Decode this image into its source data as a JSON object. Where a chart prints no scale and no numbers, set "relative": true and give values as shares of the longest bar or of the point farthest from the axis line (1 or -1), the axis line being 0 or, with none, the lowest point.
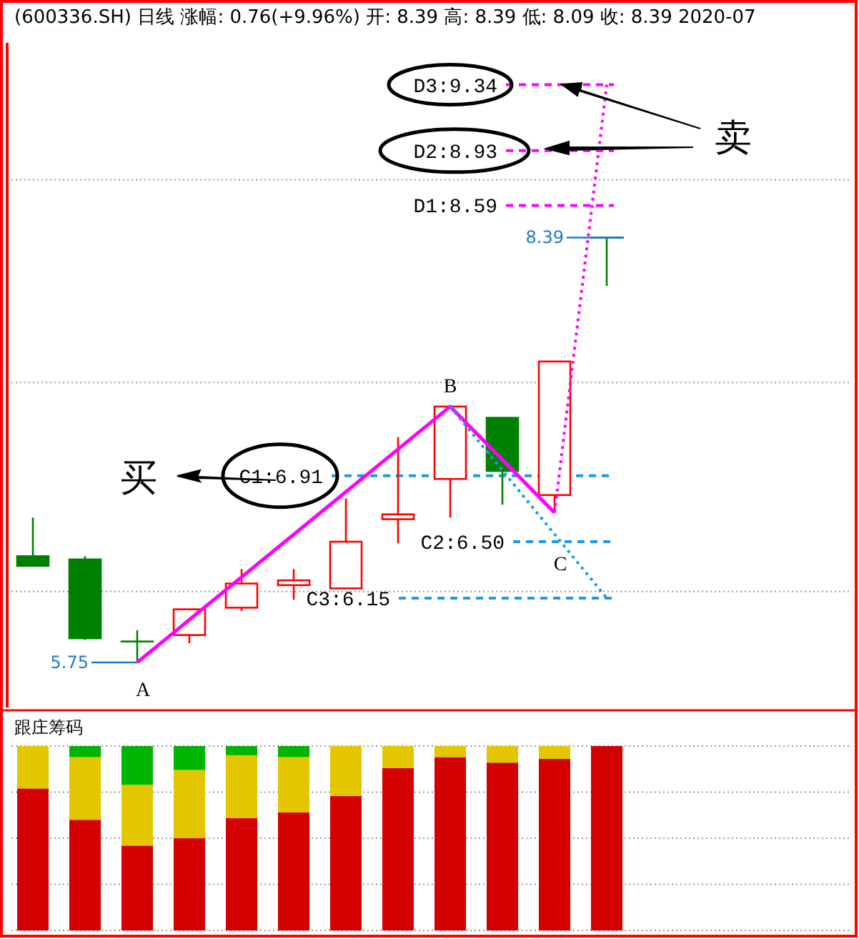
{
  "chart_data": [
    {
      "type": "candlestick",
      "title": "(600336.SH) 日线 涨幅: 0.76(+9.96%) 开: 8.39 高: 8.39 低: 8.09 收: 8.39 2020-07",
      "categories": [
        null,
        null,
        null,
        null,
        null,
        null,
        null,
        null,
        null,
        null,
        null,
        null
      ],
      "ohlc": [
        [
          6.41,
          6.65,
          6.35,
          6.35
        ],
        [
          6.39,
          6.41,
          5.89,
          5.9
        ],
        [
          5.88,
          5.95,
          5.75,
          5.88
        ],
        [
          5.92,
          6.08,
          5.87,
          6.08
        ],
        [
          6.09,
          6.33,
          6.07,
          6.24
        ],
        [
          6.23,
          6.33,
          6.14,
          6.26
        ],
        [
          6.21,
          6.77,
          6.21,
          6.5
        ],
        [
          6.64,
          7.15,
          6.49,
          6.67
        ],
        [
          6.89,
          7.34,
          6.65,
          7.34
        ],
        [
          7.27,
          7.27,
          6.73,
          6.94
        ],
        [
          6.79,
          7.62,
          6.68,
          7.62
        ],
        [
          8.39,
          8.39,
          8.09,
          8.39
        ]
      ],
      "colors": [
        "#008000",
        "#008000",
        "#008000",
        "#ff0000",
        "#ff0000",
        "#ff0000",
        "#ff0000",
        "#ff0000",
        "#ff0000",
        "#008000",
        "#ff0000",
        "#008000"
      ],
      "series": [
        {
          "type": "line",
          "color": "#ff00ff",
          "line_style": "solid",
          "values": [
            null,
            null,
            5.75,
            null,
            null,
            null,
            null,
            null,
            7.34,
            null,
            6.68,
            null
          ],
          "value_labels": [
            null,
            null,
            "A",
            null,
            null,
            null,
            null,
            null,
            "B",
            null,
            "C",
            null
          ]
        },
        {
          "type": "line",
          "color": "#ff00ff",
          "line_style": "dotted",
          "values": [
            null,
            null,
            null,
            null,
            null,
            null,
            null,
            null,
            null,
            null,
            6.68,
            9.34
          ]
        },
        {
          "type": "line",
          "color": "#1e9be0",
          "line_style": "dotted",
          "values": [
            null,
            null,
            null,
            null,
            null,
            null,
            null,
            null,
            7.34,
            null,
            null,
            6.15
          ]
        }
      ],
      "ref_lines": [
        {
          "axis": "y",
          "value": 6.91,
          "label": "C1:6.91",
          "color": "#1e9be0",
          "line_style": "dashed"
        },
        {
          "axis": "y",
          "value": 6.5,
          "label": "C2:6.50",
          "color": "#1e9be0",
          "line_style": "dashed"
        },
        {
          "axis": "y",
          "value": 6.15,
          "label": "C3:6.15",
          "color": "#1e9be0",
          "line_style": "dashed"
        },
        {
          "axis": "y",
          "value": 8.59,
          "label": "D1:8.59",
          "color": "#ff00ff",
          "line_style": "dashed"
        },
        {
          "axis": "y",
          "value": 8.93,
          "label": "D2:8.93",
          "color": "#ff00ff",
          "line_style": "dashed"
        },
        {
          "axis": "y",
          "value": 9.34,
          "label": "D3:9.34",
          "color": "#ff00ff",
          "line_style": "dashed"
        }
      ],
      "annotations": [
        "5.75",
        "8.39",
        "买",
        "卖"
      ],
      "ylim": [
        5.47,
        9.6
      ],
      "yticks": [
        {
          "value": 6.19,
          "label": null
        },
        {
          "value": 7.49,
          "label": null
        },
        {
          "value": 8.75,
          "label": null
        }
      ],
      "grid": "y"
    },
    {
      "type": "bar",
      "title": "跟庄筹码",
      "relative": true,
      "stacked": true,
      "grid": true,
      "categories": [
        null,
        null,
        null,
        null,
        null,
        null,
        null,
        null,
        null,
        null,
        null,
        null
      ],
      "series": [
        {
          "color": "#d40000",
          "values": [
            0.77,
            0.6,
            0.46,
            0.5,
            0.61,
            0.64,
            0.73,
            0.88,
            0.94,
            0.91,
            0.93,
            1
          ]
        },
        {
          "color": "#e3c500",
          "values": [
            0.23,
            0.34,
            0.33,
            0.37,
            0.34,
            0.3,
            0.27,
            0.12,
            0.06,
            0.09,
            0.07,
            0
          ]
        },
        {
          "color": "#00b400",
          "values": [
            0,
            0.06,
            0.21,
            0.13,
            0.05,
            0.06,
            0,
            0,
            0,
            0,
            0,
            0
          ]
        }
      ]
    }
  ]
}
